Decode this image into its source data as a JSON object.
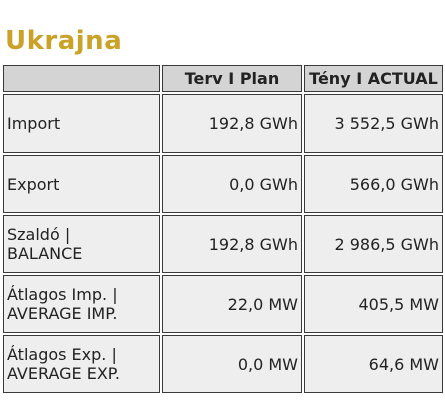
{
  "title": "Ukrajna",
  "table": {
    "header": [
      "",
      "Terv I Plan",
      "Tény I ACTUAL"
    ],
    "rows": [
      [
        "Import",
        "192,8 GWh",
        "3 552,5 GWh"
      ],
      [
        "Export",
        "0,0 GWh",
        "566,0 GWh"
      ],
      [
        "Szaldó |\nBALANCE",
        "192,8 GWh",
        "2 986,5 GWh"
      ],
      [
        "Átlagos Imp. |\nAVERAGE IMP.",
        "22,0 MW",
        "405,5 MW"
      ],
      [
        "Átlagos Exp. |\nAVERAGE EXP.",
        "0,0 MW",
        "64,6 MW"
      ]
    ]
  }
}
